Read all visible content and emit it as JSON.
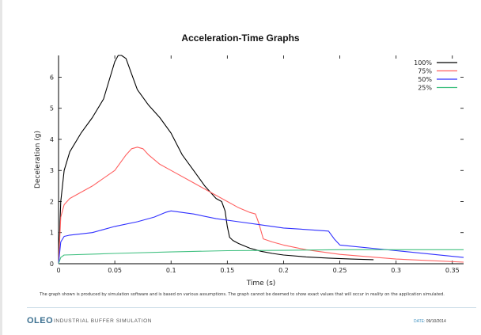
{
  "chart_data": {
    "type": "line",
    "title": "Acceleration-Time Graphs",
    "xlabel": "Time (s)",
    "ylabel": "Deceleration (g)",
    "xlim": [
      0,
      0.36
    ],
    "ylim": [
      0,
      6.7
    ],
    "x_ticks": [
      0,
      0.05,
      0.1,
      0.15,
      0.2,
      0.25,
      0.3,
      0.35
    ],
    "x_tick_labels": [
      "0",
      "0.05",
      "0.1",
      "0.15",
      "0.2",
      "0.25",
      "0.3",
      "0.35"
    ],
    "y_ticks": [
      0,
      1,
      2,
      3,
      4,
      5,
      6
    ],
    "y_tick_labels": [
      "0",
      "1",
      "2",
      "3",
      "4",
      "5",
      "6"
    ],
    "grid": false,
    "legend_position": "top-right",
    "series": [
      {
        "name": "100%",
        "color": "#000000",
        "x": [
          0,
          0.002,
          0.005,
          0.01,
          0.02,
          0.03,
          0.04,
          0.045,
          0.05,
          0.053,
          0.056,
          0.06,
          0.065,
          0.07,
          0.08,
          0.09,
          0.1,
          0.11,
          0.12,
          0.13,
          0.14,
          0.145,
          0.148,
          0.15,
          0.152,
          0.155,
          0.16,
          0.17,
          0.18,
          0.19,
          0.2,
          0.22,
          0.24,
          0.26,
          0.28
        ],
        "y": [
          0,
          2.0,
          3.0,
          3.6,
          4.2,
          4.7,
          5.3,
          5.9,
          6.5,
          6.7,
          6.7,
          6.6,
          6.1,
          5.6,
          5.1,
          4.7,
          4.2,
          3.5,
          3.0,
          2.5,
          2.1,
          2.0,
          1.7,
          1.2,
          0.85,
          0.75,
          0.65,
          0.5,
          0.4,
          0.33,
          0.28,
          0.22,
          0.18,
          0.15,
          0.13
        ]
      },
      {
        "name": "75%",
        "color": "#ff6060",
        "x": [
          0,
          0.002,
          0.005,
          0.01,
          0.03,
          0.05,
          0.06,
          0.065,
          0.07,
          0.075,
          0.08,
          0.09,
          0.1,
          0.12,
          0.14,
          0.16,
          0.17,
          0.175,
          0.178,
          0.182,
          0.19,
          0.2,
          0.22,
          0.25,
          0.3,
          0.36
        ],
        "y": [
          0,
          1.5,
          1.9,
          2.1,
          2.5,
          3.0,
          3.5,
          3.7,
          3.75,
          3.7,
          3.5,
          3.2,
          3.0,
          2.6,
          2.2,
          1.8,
          1.65,
          1.6,
          1.3,
          0.8,
          0.7,
          0.6,
          0.45,
          0.3,
          0.15,
          0.05
        ]
      },
      {
        "name": "50%",
        "color": "#3030ff",
        "x": [
          0,
          0.002,
          0.005,
          0.01,
          0.03,
          0.05,
          0.07,
          0.085,
          0.095,
          0.1,
          0.12,
          0.14,
          0.16,
          0.18,
          0.2,
          0.22,
          0.24,
          0.245,
          0.25,
          0.3,
          0.36
        ],
        "y": [
          0,
          0.7,
          0.88,
          0.92,
          1.0,
          1.2,
          1.35,
          1.5,
          1.65,
          1.7,
          1.6,
          1.45,
          1.35,
          1.25,
          1.15,
          1.1,
          1.05,
          0.8,
          0.6,
          0.42,
          0.2
        ]
      },
      {
        "name": "25%",
        "color": "#40c080",
        "x": [
          0,
          0.002,
          0.005,
          0.05,
          0.1,
          0.15,
          0.2,
          0.25,
          0.3,
          0.36
        ],
        "y": [
          0,
          0.2,
          0.28,
          0.33,
          0.38,
          0.42,
          0.43,
          0.45,
          0.45,
          0.45
        ]
      }
    ]
  },
  "disclaimer": "The graph shown is produced by simulation software and is based on various assumptions. The graph cannot be deemed to show exact values that will occur in reality on the application simulated.",
  "footer": {
    "logo": "OLEO",
    "app_name": "INDUSTRIAL BUFFER SIMULATION",
    "date_label": "DATE:",
    "date_value": "09/10/2014"
  }
}
